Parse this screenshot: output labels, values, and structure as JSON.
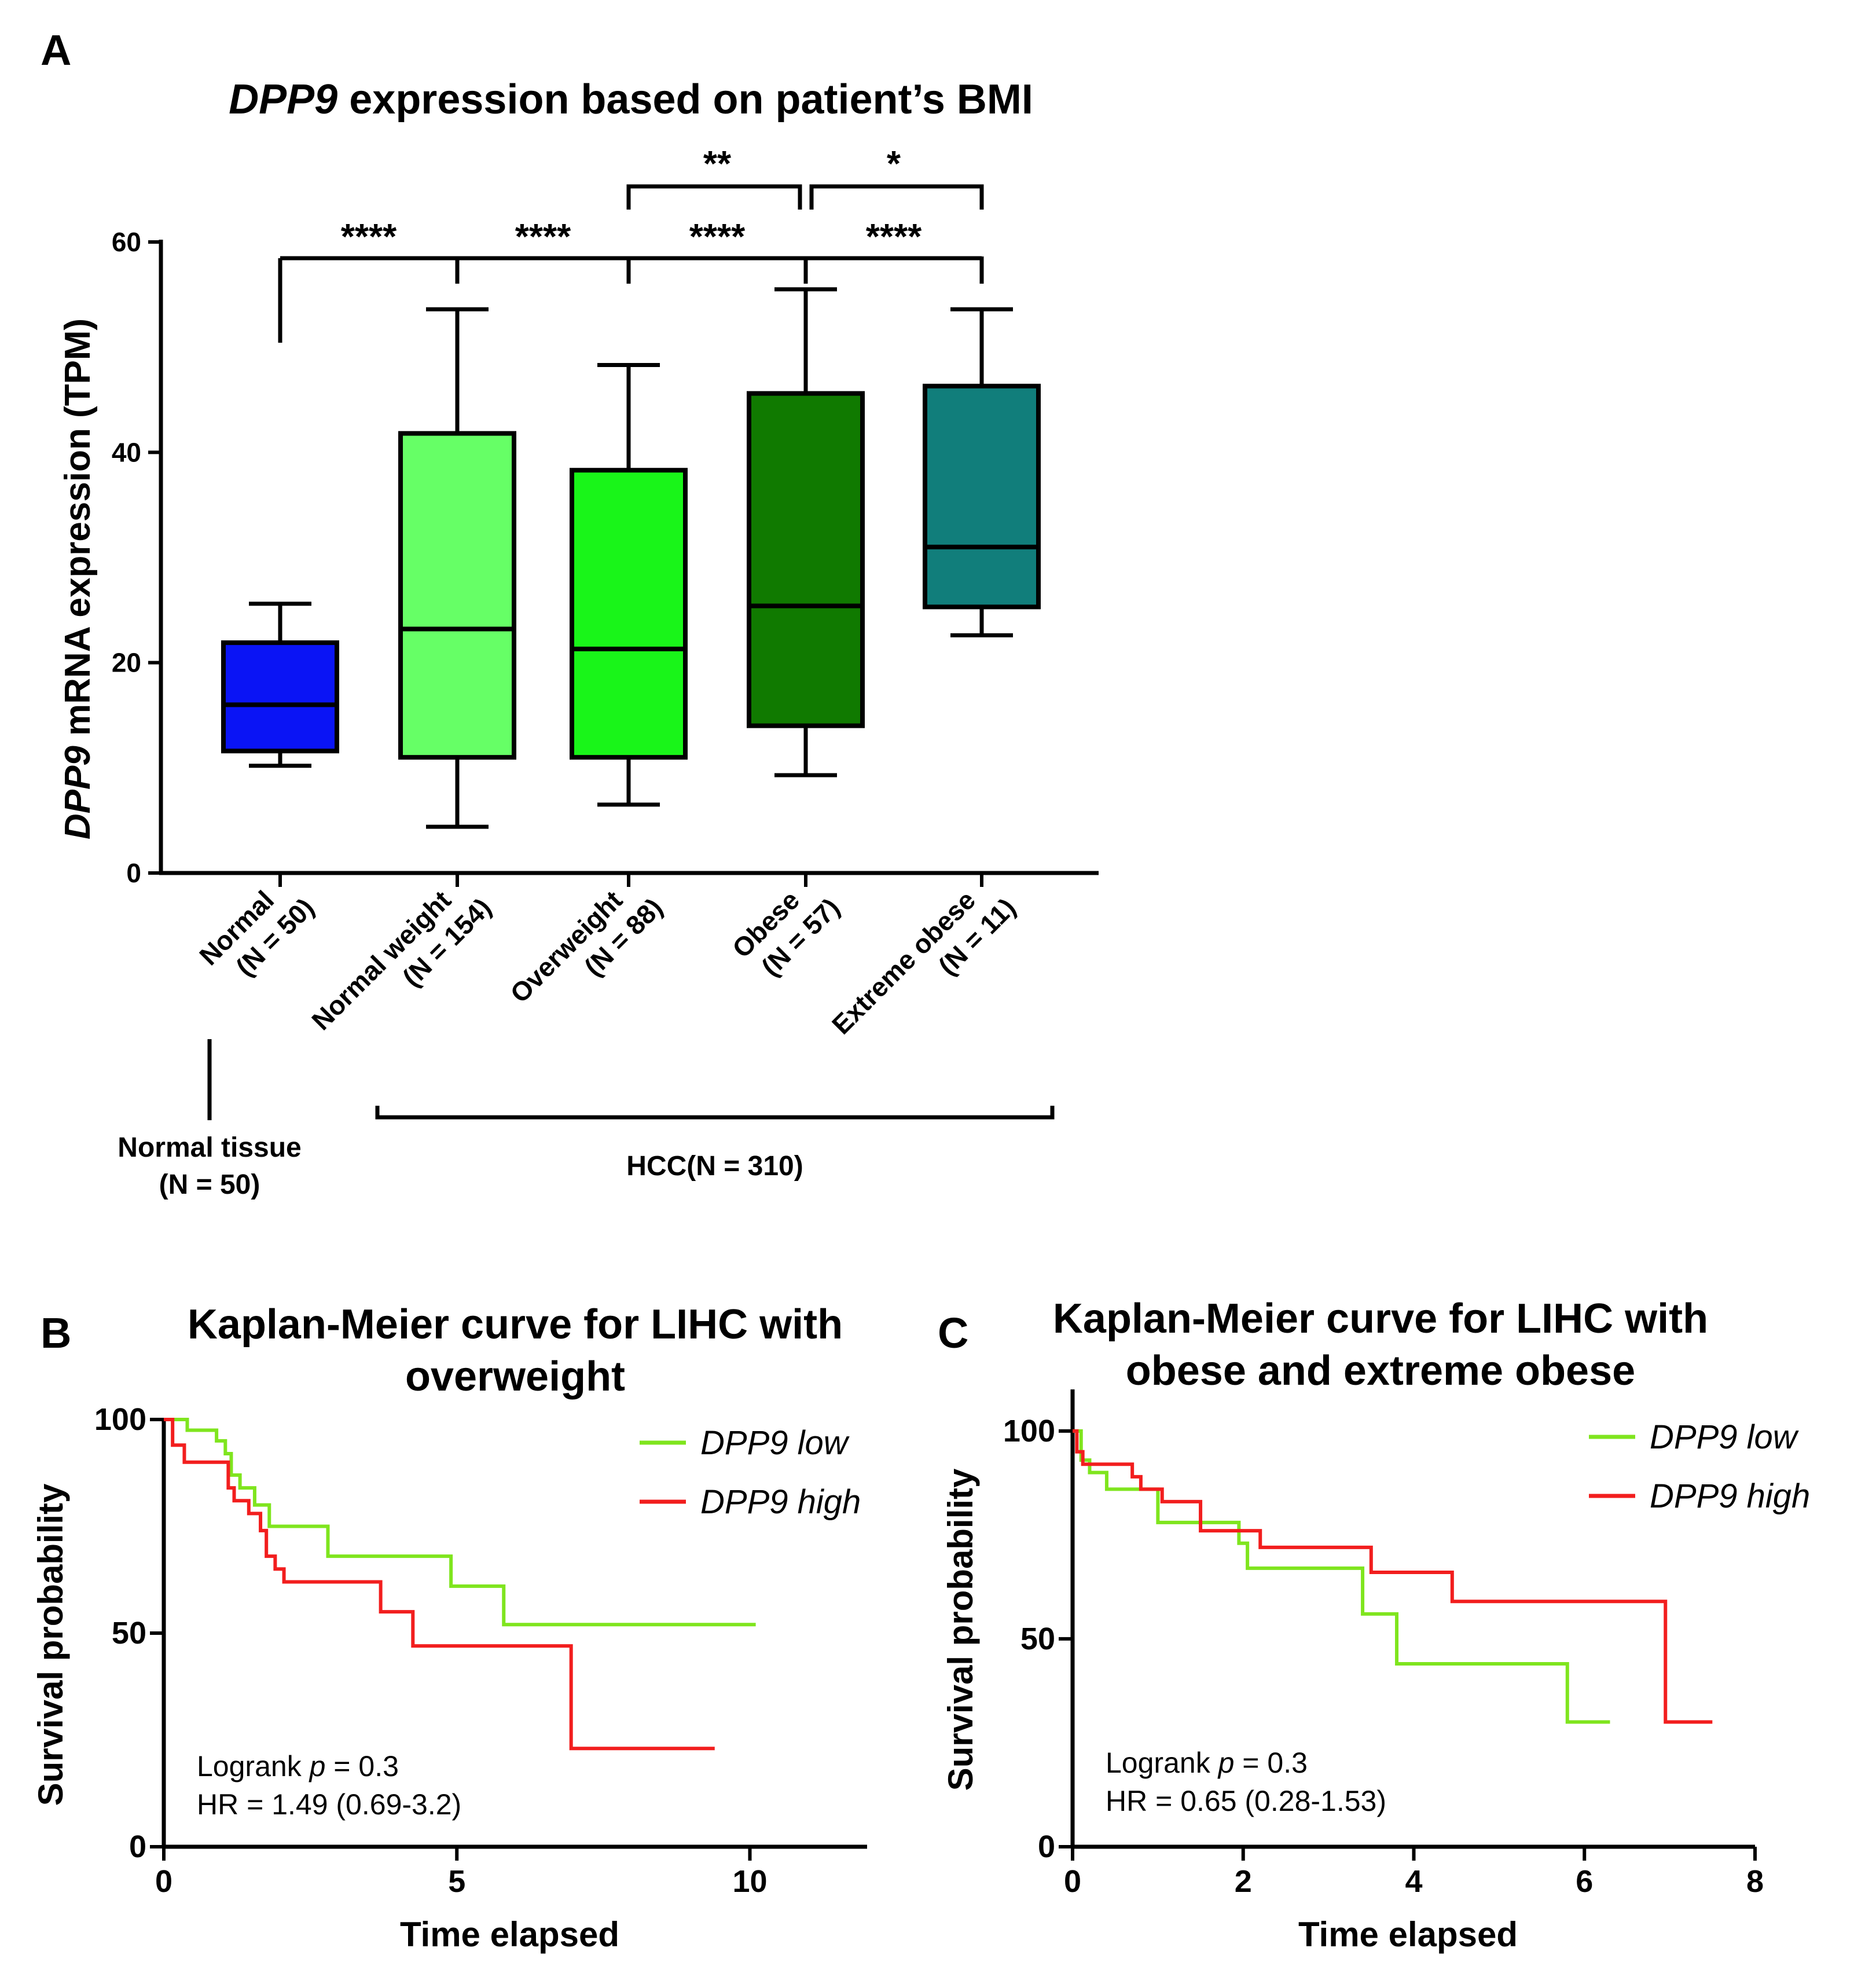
{
  "figure": {
    "panel_a": {
      "letter": "A",
      "title_italic": "DPP9",
      "title_rest": " expression based on patient’s BMI",
      "ylabel_italic": "DPP9",
      "ylabel_rest": " mRNA expression (TPM)",
      "group_normal_line1": "Normal tissue",
      "group_normal_line2": "(N = 50)",
      "group_hcc": "HCC(N = 310)"
    },
    "panel_b": {
      "letter": "B"
    },
    "panel_c": {
      "letter": "C"
    }
  },
  "chart_data": [
    {
      "type": "box",
      "title": "DPP9 expression based on patient’s BMI",
      "xlabel": "",
      "ylabel": "DPP9 mRNA expression (TPM)",
      "ylim": [
        0,
        60
      ],
      "yticks": [
        0,
        20,
        40,
        60
      ],
      "categories": [
        {
          "line1": "Normal",
          "line2": "(N = 50)",
          "color": "#0a14f5",
          "min": 10.2,
          "q1": 11.6,
          "median": 16.0,
          "q3": 21.9,
          "max": 25.6
        },
        {
          "line1": "Normal weight",
          "line2": "(N = 154)",
          "color": "#66ff66",
          "min": 4.4,
          "q1": 11.0,
          "median": 23.2,
          "q3": 41.8,
          "max": 53.6
        },
        {
          "line1": "Overweight",
          "line2": "(N = 88)",
          "color": "#19f519",
          "min": 6.5,
          "q1": 11.0,
          "median": 21.3,
          "q3": 38.3,
          "max": 48.3
        },
        {
          "line1": "Obese",
          "line2": "(N = 57)",
          "color": "#107a00",
          "min": 9.3,
          "q1": 14.0,
          "median": 25.4,
          "q3": 45.6,
          "max": 55.5
        },
        {
          "line1": "Extreme obese",
          "line2": "(N = 11)",
          "color": "#117e7b",
          "min": 22.6,
          "q1": 25.3,
          "median": 31.0,
          "q3": 46.3,
          "max": 53.6
        }
      ],
      "significance": [
        {
          "from": 0,
          "to": 1,
          "label": "****"
        },
        {
          "from": 1,
          "to": 2,
          "label": "****"
        },
        {
          "from": 2,
          "to": 3,
          "label": "****"
        },
        {
          "from": 3,
          "to": 4,
          "label": "****"
        },
        {
          "from": 2,
          "to": 3,
          "label": "**"
        },
        {
          "from": 3,
          "to": 4,
          "label": "*"
        }
      ]
    },
    {
      "type": "line",
      "subtype": "kaplan-meier",
      "title_line1": "Kaplan-Meier curve for LIHC with",
      "title_line2": "overweight",
      "xlabel": "Time elapsed",
      "ylabel": "Survival probability",
      "xlim": [
        0,
        12
      ],
      "ylim": [
        0,
        100
      ],
      "xticks": [
        0,
        5,
        10
      ],
      "yticks": [
        0,
        50,
        100
      ],
      "stat_prefix": "Logrank ",
      "stat_p": "p",
      "stat_suffix": " = 0.3",
      "hr": "HR = 1.49 (0.69-3.2)",
      "series": [
        {
          "name": "DPP9 low",
          "color": "#7fe51e",
          "x": [
            0,
            0.4,
            0.9,
            1.05,
            1.15,
            1.3,
            1.55,
            1.8,
            2.8,
            4.9,
            5.8,
            10.1
          ],
          "y": [
            100,
            97.5,
            95,
            92,
            87,
            84,
            80,
            75,
            68,
            61,
            52,
            52
          ]
        },
        {
          "name": "DPP9 high",
          "color": "#f21e1e",
          "x": [
            0,
            0.15,
            0.35,
            1.1,
            1.2,
            1.45,
            1.65,
            1.75,
            1.9,
            2.05,
            3.7,
            4.25,
            6.95,
            9.4
          ],
          "y": [
            100,
            94,
            90,
            84,
            81,
            78,
            74,
            68,
            65,
            62,
            55,
            47,
            23,
            23
          ]
        }
      ]
    },
    {
      "type": "line",
      "subtype": "kaplan-meier",
      "title_line1": "Kaplan-Meier curve for LIHC with",
      "title_line2": "obese and extreme obese",
      "xlabel": "Time elapsed",
      "ylabel": "Survival probability",
      "xlim": [
        0,
        8
      ],
      "ylim": [
        0,
        110
      ],
      "xticks": [
        0,
        2,
        4,
        6,
        8
      ],
      "yticks": [
        0,
        50,
        100
      ],
      "stat_prefix": "Logrank ",
      "stat_p": "p",
      "stat_suffix": " = 0.3",
      "hr": "HR = 0.65 (0.28-1.53)",
      "series": [
        {
          "name": "DPP9 low",
          "color": "#7fe51e",
          "x": [
            0,
            0.1,
            0.2,
            0.4,
            1.0,
            1.95,
            2.05,
            3.4,
            3.8,
            5.8,
            6.3
          ],
          "y": [
            100,
            93,
            90,
            86,
            78,
            73,
            67,
            56,
            44,
            30,
            30
          ]
        },
        {
          "name": "DPP9 high",
          "color": "#f21e1e",
          "x": [
            0,
            0.05,
            0.12,
            0.7,
            0.8,
            1.05,
            1.5,
            2.2,
            3.5,
            4.45,
            6.95,
            7.5
          ],
          "y": [
            100,
            95,
            92,
            89,
            86,
            83,
            76,
            72,
            66,
            59,
            30,
            30
          ]
        }
      ]
    }
  ]
}
